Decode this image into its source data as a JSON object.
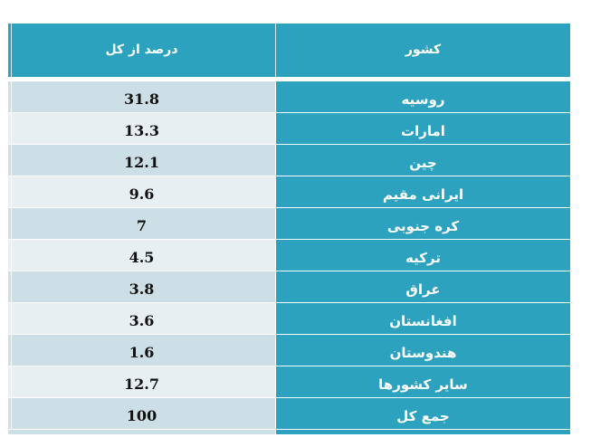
{
  "header": {
    "percent_label": "درصد از کل",
    "country_label": "کشور"
  },
  "rows": [
    {
      "country": "روسیه",
      "percent": "31.8"
    },
    {
      "country": "امارات",
      "percent": "13.3"
    },
    {
      "country": "چین",
      "percent": "12.1"
    },
    {
      "country": "ایرانی مقیم",
      "percent": "9.6"
    },
    {
      "country": "کره جنوبی",
      "percent": "7"
    },
    {
      "country": "ترکیه",
      "percent": "4.5"
    },
    {
      "country": "عراق",
      "percent": "3.8"
    },
    {
      "country": "افغانستان",
      "percent": "3.6"
    },
    {
      "country": "هندوستان",
      "percent": "1.6"
    },
    {
      "country": "سایر کشورها",
      "percent": "12.7"
    },
    {
      "country": "جمع کل",
      "percent": "100"
    }
  ],
  "colors": {
    "header": "#2ca2bf",
    "row_odd": "#cddfe6",
    "row_even": "#e8eff2"
  }
}
